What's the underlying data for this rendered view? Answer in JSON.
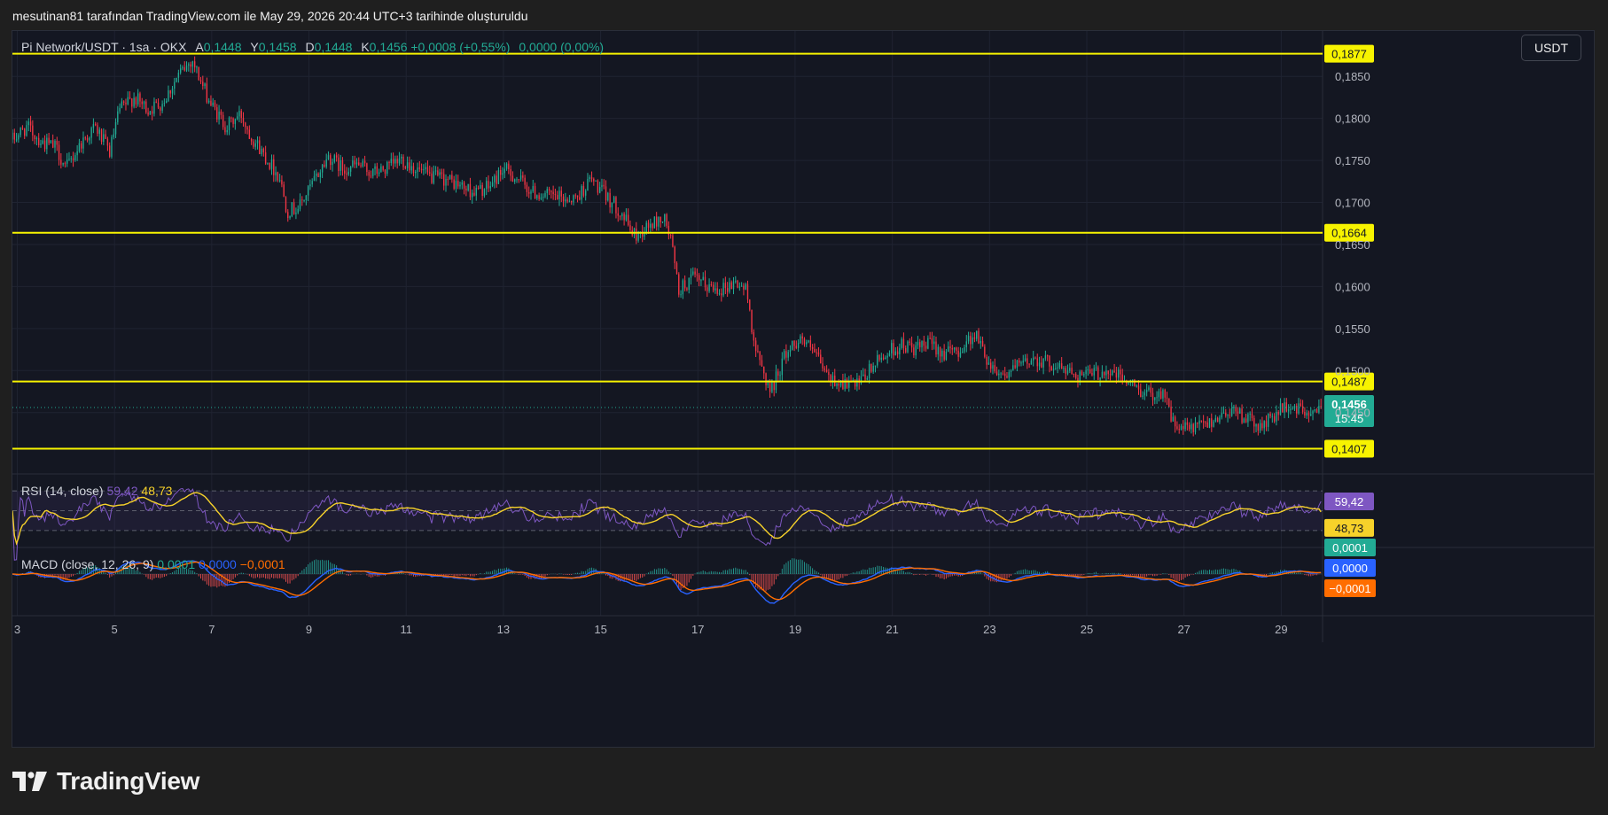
{
  "header_caption": "mesutinan81 tarafından TradingView.com ile May 29, 2026 20:44 UTC+3 tarihinde oluşturuldu",
  "legend": {
    "symbol": "Pi Network/USDT · 1sa · OKX",
    "open_label": "A",
    "open": "0,1448",
    "high_label": "Y",
    "high": "0,1458",
    "low_label": "D",
    "low": "0,1448",
    "close_label": "K",
    "close": "0,1456",
    "change": "+0,0008 (+0,55%)",
    "extra": "0,0000 (0,00%)"
  },
  "currency_button": "USDT",
  "brand": "TradingView",
  "colors": {
    "up": "#22ab94",
    "down": "#f23645",
    "hline": "#f7f300",
    "rsi": "#7e57c2",
    "rsi_ma": "#f7d22a",
    "macd": "#2962ff",
    "signal": "#ff6d00"
  },
  "chart_data": [
    {
      "type": "candlestick",
      "title": "Pi Network/USDT · 1sa · OKX",
      "x_ticks": [
        "3",
        "5",
        "7",
        "9",
        "11",
        "13",
        "15",
        "17",
        "19",
        "21",
        "23",
        "25",
        "27",
        "29"
      ],
      "y_ticks": [
        "0,1850",
        "0,1800",
        "0,1750",
        "0,1700",
        "0,1650",
        "0,1600",
        "0,1550",
        "0,1500",
        "0,1450"
      ],
      "ylim": [
        0.1377,
        0.1904
      ],
      "xlim": [
        2.9,
        29.85
      ],
      "horizontal_levels": [
        0.1877,
        0.1664,
        0.1487,
        0.1407
      ],
      "horizontal_level_labels": [
        "0,1877",
        "0,1664",
        "0,1487",
        "0,1407"
      ],
      "last_price": 0.1456,
      "last_price_label": "0,1456",
      "countdown": "15:45",
      "close_path": [
        [
          2.9,
          0.1775
        ],
        [
          3.2,
          0.179
        ],
        [
          3.5,
          0.1772
        ],
        [
          3.8,
          0.1765
        ],
        [
          4.0,
          0.174
        ],
        [
          4.3,
          0.177
        ],
        [
          4.6,
          0.179
        ],
        [
          4.9,
          0.176
        ],
        [
          5.1,
          0.181
        ],
        [
          5.4,
          0.1825
        ],
        [
          5.7,
          0.181
        ],
        [
          6.0,
          0.182
        ],
        [
          6.3,
          0.185
        ],
        [
          6.6,
          0.187
        ],
        [
          6.8,
          0.184
        ],
        [
          7.0,
          0.1815
        ],
        [
          7.3,
          0.179
        ],
        [
          7.6,
          0.1805
        ],
        [
          7.8,
          0.178
        ],
        [
          8.1,
          0.1755
        ],
        [
          8.4,
          0.173
        ],
        [
          8.55,
          0.169
        ],
        [
          8.8,
          0.1695
        ],
        [
          9.1,
          0.1725
        ],
        [
          9.4,
          0.1755
        ],
        [
          9.7,
          0.174
        ],
        [
          10.0,
          0.1745
        ],
        [
          10.3,
          0.1735
        ],
        [
          10.6,
          0.174
        ],
        [
          10.9,
          0.1752
        ],
        [
          11.2,
          0.174
        ],
        [
          11.5,
          0.173
        ],
        [
          11.8,
          0.1728
        ],
        [
          12.1,
          0.172
        ],
        [
          12.4,
          0.1712
        ],
        [
          12.7,
          0.1718
        ],
        [
          13.0,
          0.174
        ],
        [
          13.3,
          0.1728
        ],
        [
          13.6,
          0.1712
        ],
        [
          13.9,
          0.1708
        ],
        [
          14.2,
          0.1705
        ],
        [
          14.5,
          0.1705
        ],
        [
          14.8,
          0.1728
        ],
        [
          15.1,
          0.1708
        ],
        [
          15.4,
          0.169
        ],
        [
          15.7,
          0.166
        ],
        [
          16.0,
          0.1672
        ],
        [
          16.3,
          0.1682
        ],
        [
          16.45,
          0.1655
        ],
        [
          16.6,
          0.1595
        ],
        [
          16.9,
          0.161
        ],
        [
          17.2,
          0.16
        ],
        [
          17.5,
          0.1598
        ],
        [
          17.8,
          0.1605
        ],
        [
          18.0,
          0.1595
        ],
        [
          18.2,
          0.152
        ],
        [
          18.5,
          0.1475
        ],
        [
          18.8,
          0.152
        ],
        [
          19.1,
          0.154
        ],
        [
          19.4,
          0.152
        ],
        [
          19.7,
          0.149
        ],
        [
          20.0,
          0.1485
        ],
        [
          20.3,
          0.1482
        ],
        [
          20.6,
          0.1505
        ],
        [
          20.9,
          0.1522
        ],
        [
          21.2,
          0.153
        ],
        [
          21.5,
          0.1525
        ],
        [
          21.8,
          0.1532
        ],
        [
          22.1,
          0.152
        ],
        [
          22.4,
          0.1525
        ],
        [
          22.7,
          0.1545
        ],
        [
          23.0,
          0.1508
        ],
        [
          23.3,
          0.1495
        ],
        [
          23.6,
          0.1505
        ],
        [
          23.9,
          0.1515
        ],
        [
          24.2,
          0.151
        ],
        [
          24.5,
          0.1502
        ],
        [
          24.8,
          0.1496
        ],
        [
          25.1,
          0.1495
        ],
        [
          25.4,
          0.15
        ],
        [
          25.7,
          0.1492
        ],
        [
          26.0,
          0.148
        ],
        [
          26.3,
          0.1472
        ],
        [
          26.6,
          0.1475
        ],
        [
          26.8,
          0.1432
        ],
        [
          27.1,
          0.143
        ],
        [
          27.4,
          0.1435
        ],
        [
          27.7,
          0.1445
        ],
        [
          28.0,
          0.1455
        ],
        [
          28.3,
          0.1442
        ],
        [
          28.6,
          0.1432
        ],
        [
          28.9,
          0.145
        ],
        [
          29.2,
          0.1458
        ],
        [
          29.5,
          0.145
        ],
        [
          29.75,
          0.1448
        ],
        [
          29.85,
          0.1456
        ]
      ]
    },
    {
      "type": "line",
      "title": "RSI (14, close)",
      "series": [
        {
          "name": "RSI",
          "last": 59.42,
          "last_label": "59,42"
        },
        {
          "name": "RSI MA",
          "last": 48.73,
          "last_label": "48,73"
        }
      ],
      "ylim": [
        20,
        80
      ],
      "band_upper": 70,
      "band_middle": 50,
      "band_lower": 30
    },
    {
      "type": "line",
      "title": "MACD (close, 12, 26, 9)",
      "series": [
        {
          "name": "Histogram",
          "last": 0.0001,
          "last_label": "0,0001"
        },
        {
          "name": "MACD",
          "last": 0.0,
          "last_label": "0,0000"
        },
        {
          "name": "Signal",
          "last": -0.0001,
          "last_label": "−0,0001"
        }
      ]
    }
  ]
}
